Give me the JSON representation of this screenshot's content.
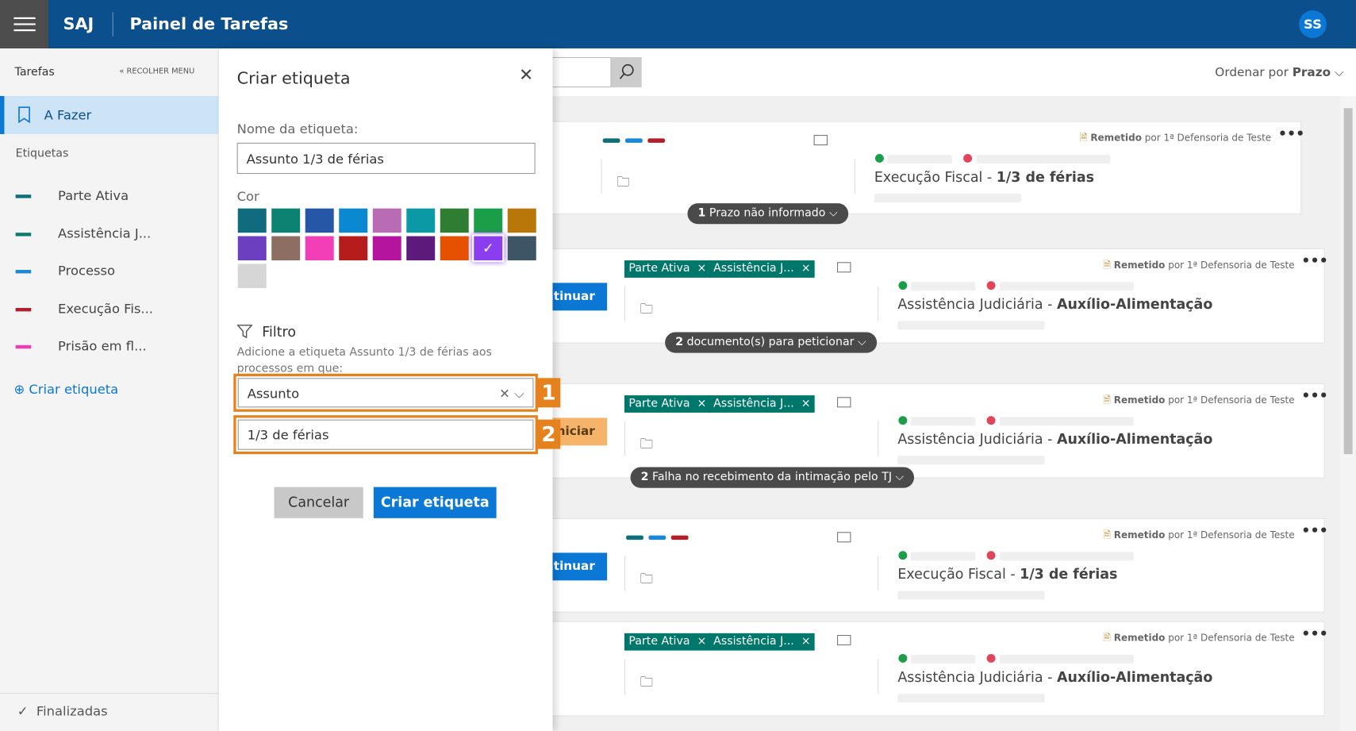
{
  "header": {
    "app": "SAJ",
    "title": "Painel de Tarefas",
    "avatar": "SS"
  },
  "sidebar": {
    "section": "Tarefas",
    "collapse": "RECOLHER MENU",
    "active": "A Fazer",
    "labels_heading": "Etiquetas",
    "labels": [
      {
        "name": "Parte Ativa",
        "color": "#0e6f7a"
      },
      {
        "name": "Assistência J...",
        "color": "#0e7a6e"
      },
      {
        "name": "Processo",
        "color": "#1a88d6"
      },
      {
        "name": "Execução Fis...",
        "color": "#b1202a"
      },
      {
        "name": "Prisão em fl...",
        "color": "#f03cb0"
      }
    ],
    "create": "Criar etiqueta",
    "finished": "Finalizadas"
  },
  "toolbar": {
    "sort_prefix": "Ordenar por",
    "sort_value": "Prazo"
  },
  "dialog": {
    "title": "Criar etiqueta",
    "name_label": "Nome da etiqueta:",
    "name_value": "Assunto 1/3 de férias",
    "color_label": "Cor",
    "colors": [
      "#0f6b7d",
      "#0b8272",
      "#2556a8",
      "#0a88d2",
      "#b96bb3",
      "#0b9aa5",
      "#2e7d32",
      "#1a9e48",
      "#b87708",
      "#6b3fc0",
      "#8d6e63",
      "#f23fb8",
      "#b71c1c",
      "#b5159e",
      "#5c1a7a",
      "#e65100",
      "#8a3ef0",
      "#3d5565",
      "#d6d6d6"
    ],
    "selected_color": 16,
    "filter_title": "Filtro",
    "filter_desc": "Adicione a etiqueta Assunto 1/3 de férias aos processos em que:",
    "filter_field": "Assunto",
    "filter_value": "1/3 de férias",
    "callouts": [
      "1",
      "2"
    ],
    "cancel": "Cancelar",
    "submit": "Criar etiqueta"
  },
  "tasks": [
    {
      "tag_colors": [
        "#0e6f7a",
        "#1a88d6",
        "#b1202a"
      ],
      "tags": [],
      "action": null,
      "folder": "Pasta digital",
      "status": "Remetido",
      "by": "por 1ª Defensoria de Teste",
      "class": "Execução Fiscal",
      "subject": "1/3 de férias",
      "footer_count": "1",
      "footer_text": "Prazo não informado"
    },
    {
      "tag_colors": [],
      "tags": [
        "Parte Ativa",
        "Assistência J..."
      ],
      "action": "Continuar",
      "folder": "Pasta digital",
      "status": "Remetido",
      "by": "por 1ª Defensoria de Teste",
      "class": "Assistência Judiciária",
      "subject": "Auxílio-Alimentação",
      "footer_count": "2",
      "footer_text": "documento(s) para peticionar"
    },
    {
      "tag_colors": [],
      "tags": [
        "Parte Ativa",
        "Assistência J..."
      ],
      "action": "Iniciar",
      "folder": "Pasta digital",
      "status": "Remetido",
      "by": "por 1ª Defensoria de Teste",
      "class": "Assistência Judiciária",
      "subject": "Auxílio-Alimentação",
      "footer_count": "2",
      "footer_text": "Falha no recebimento da intimação pelo TJ"
    },
    {
      "tag_colors": [
        "#0e6f7a",
        "#1a88d6",
        "#b1202a"
      ],
      "tags": [],
      "action": "Continuar",
      "folder": "Pasta digital",
      "status": "Remetido",
      "by": "por 1ª Defensoria de Teste",
      "class": "Execução Fiscal",
      "subject": "1/3 de férias",
      "footer_count": null,
      "footer_text": null
    },
    {
      "tag_colors": [],
      "tags": [
        "Parte Ativa",
        "Assistência J..."
      ],
      "action": null,
      "folder": "Pasta digital",
      "status": "Remetido",
      "by": "por 1ª Defensoria de Teste",
      "class": "Assistência Judiciária",
      "subject": "Auxílio-Alimentação",
      "footer_count": null,
      "footer_text": null
    }
  ]
}
